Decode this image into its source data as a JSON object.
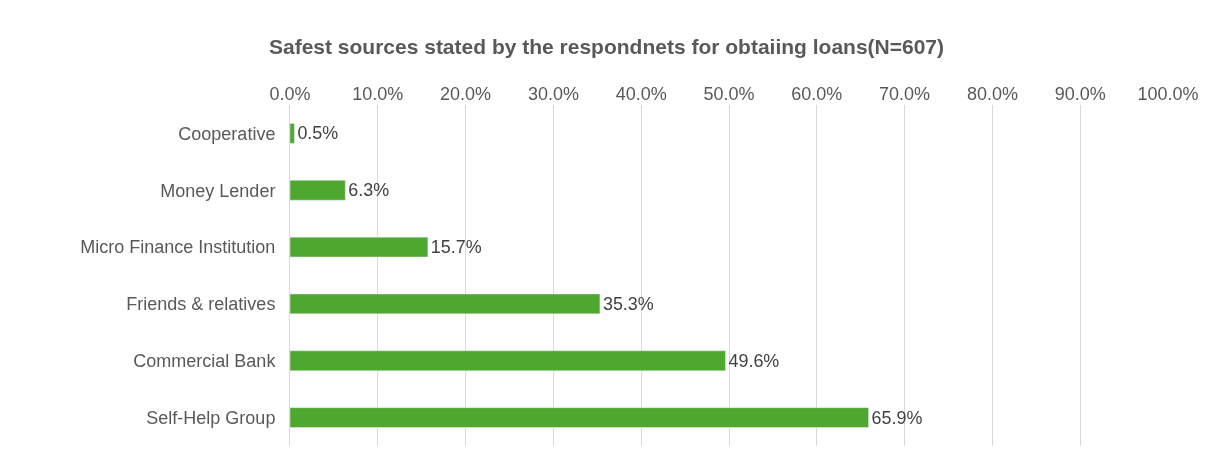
{
  "chart_data": {
    "type": "bar",
    "orientation": "horizontal",
    "title": "Safest sources stated by the respondnets for obtaiing loans(N=607)",
    "categories": [
      "Cooperative",
      "Money Lender",
      "Micro Finance Institution",
      "Friends & relatives",
      "Commercial Bank",
      "Self-Help Group"
    ],
    "values": [
      0.5,
      6.3,
      15.7,
      35.3,
      49.6,
      65.9
    ],
    "value_labels": [
      "0.5%",
      "6.3%",
      "15.7%",
      "35.3%",
      "49.6%",
      "65.9%"
    ],
    "color": "#4ea72e",
    "xlim": [
      0,
      100
    ],
    "xticks": [
      {
        "value": 0,
        "label": "0.0%"
      },
      {
        "value": 10,
        "label": "10.0%"
      },
      {
        "value": 20,
        "label": "20.0%"
      },
      {
        "value": 30,
        "label": "30.0%"
      },
      {
        "value": 40,
        "label": "40.0%"
      },
      {
        "value": 50,
        "label": "50.0%"
      },
      {
        "value": 60,
        "label": "60.0%"
      },
      {
        "value": 70,
        "label": "70.0%"
      },
      {
        "value": 80,
        "label": "80.0%"
      },
      {
        "value": 90,
        "label": "90.0%"
      },
      {
        "value": 100,
        "label": "100.0%"
      }
    ],
    "grid": "x"
  }
}
